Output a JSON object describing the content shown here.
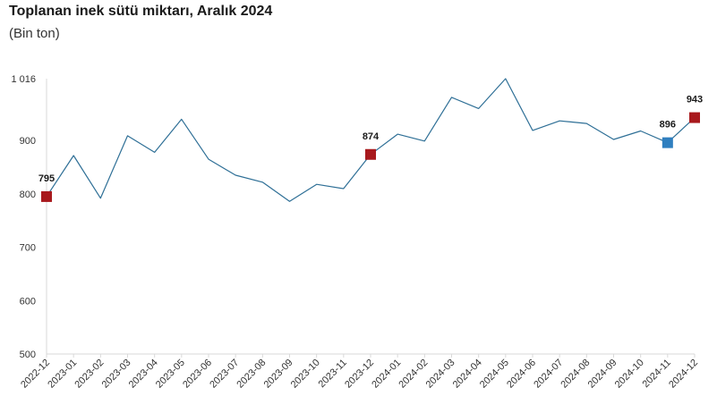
{
  "chart_data": {
    "type": "line",
    "title": "Toplanan inek sütü miktarı, Aralık 2024",
    "subtitle": "(Bin ton)",
    "xlabel": "",
    "ylabel": "",
    "ylim": [
      500,
      1016
    ],
    "yticks": [
      {
        "value": 500,
        "label": "500"
      },
      {
        "value": 600,
        "label": "600"
      },
      {
        "value": 700,
        "label": "700"
      },
      {
        "value": 800,
        "label": "800"
      },
      {
        "value": 900,
        "label": "900"
      },
      {
        "value": 1016,
        "label": "1 016"
      }
    ],
    "categories": [
      "2022-12",
      "2023-01",
      "2023-02",
      "2023-03",
      "2023-04",
      "2023-05",
      "2023-06",
      "2023-07",
      "2023-08",
      "2023-09",
      "2023-10",
      "2023-11",
      "2023-12",
      "2024-01",
      "2024-02",
      "2024-03",
      "2024-04",
      "2024-05",
      "2024-06",
      "2024-07",
      "2024-08",
      "2024-09",
      "2024-10",
      "2024-11",
      "2024-12"
    ],
    "series": [
      {
        "name": "Toplanan inek sütü",
        "color": "#2e6f96",
        "values": [
          795,
          872,
          792,
          909,
          878,
          940,
          865,
          835,
          822,
          786,
          818,
          810,
          874,
          912,
          899,
          981,
          960,
          1016,
          919,
          937,
          932,
          902,
          918,
          896,
          943
        ]
      }
    ],
    "highlights": [
      {
        "index": 0,
        "label": "795",
        "color": "#a8191d"
      },
      {
        "index": 12,
        "label": "874",
        "color": "#a8191d"
      },
      {
        "index": 23,
        "label": "896",
        "color": "#2f7fbf"
      },
      {
        "index": 24,
        "label": "943",
        "color": "#a8191d"
      }
    ],
    "grid": false
  }
}
